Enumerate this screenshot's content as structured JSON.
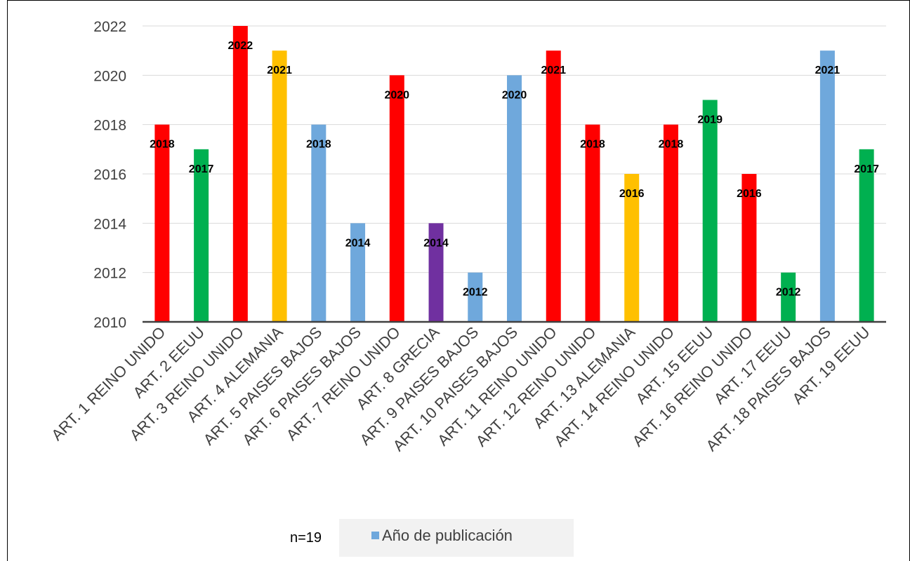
{
  "note": "n=19",
  "legend_color": "#6fa8dc",
  "chart_data": {
    "type": "bar",
    "categories": [
      "ART. 1 REINO UNIDO",
      "ART. 2 EEUU",
      "ART. 3 REINO UNIDO",
      "ART. 4 ALEMANIA",
      "ART. 5 PAISES BAJOS",
      "ART. 6 PAISES BAJOS",
      "ART. 7 REINO UNIDO",
      "ART. 8 GRECIA",
      "ART. 9 PAISES BAJOS",
      "ART. 10 PAISES BAJOS",
      "ART. 11 REINO UNIDO",
      "ART. 12 REINO UNIDO",
      "ART. 13 ALEMANIA",
      "ART. 14 REINO UNIDO",
      "ART. 15 EEUU",
      "ART. 16 REINO UNIDO",
      "ART. 17 EEUU",
      "ART. 18 PAISES BAJOS",
      "ART. 19 EEUU"
    ],
    "series": [
      {
        "name": "Año de publicación",
        "values": [
          2018,
          2017,
          2022,
          2021,
          2018,
          2014,
          2020,
          2014,
          2012,
          2020,
          2021,
          2018,
          2016,
          2018,
          2019,
          2016,
          2012,
          2021,
          2017
        ],
        "colors": [
          "#ff0000",
          "#00b050",
          "#ff0000",
          "#ffc000",
          "#6fa8dc",
          "#6fa8dc",
          "#ff0000",
          "#7030a0",
          "#6fa8dc",
          "#6fa8dc",
          "#ff0000",
          "#ff0000",
          "#ffc000",
          "#ff0000",
          "#00b050",
          "#ff0000",
          "#00b050",
          "#6fa8dc",
          "#00b050"
        ]
      }
    ],
    "ylim": [
      2010,
      2022
    ],
    "yticks": [
      2010,
      2012,
      2014,
      2016,
      2018,
      2020,
      2022
    ],
    "grid": true,
    "data_labels": true,
    "legend_position": "bottom"
  }
}
